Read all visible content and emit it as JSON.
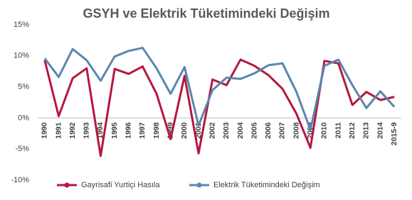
{
  "chart_data": {
    "type": "line",
    "title": "GSYH ve Elektrik Tüketimindeki  Değişim",
    "categories": [
      "1990",
      "1991",
      "1992",
      "1993",
      "1994",
      "1995",
      "1996",
      "1997",
      "1998",
      "1999",
      "2000",
      "2001",
      "2002",
      "2003",
      "2004",
      "2005",
      "2006",
      "2007",
      "2008",
      "2009",
      "2010",
      "2011",
      "2012",
      "2013",
      "2014",
      "2015-9"
    ],
    "series": [
      {
        "name": "Gayrisafi Yurtiçi Hasıla",
        "color": "#b5173e",
        "values": [
          9.3,
          0.3,
          6.4,
          8.0,
          -6.1,
          7.9,
          7.1,
          8.3,
          3.9,
          -3.4,
          6.8,
          -5.7,
          6.2,
          5.3,
          9.4,
          8.4,
          6.9,
          4.7,
          0.7,
          -4.8,
          9.2,
          8.8,
          2.1,
          4.2,
          2.9,
          3.4
        ]
      },
      {
        "name": "Elektrik Tüketimindeki Değişim",
        "color": "#5b86ad",
        "values": [
          9.6,
          6.6,
          11.1,
          9.3,
          6.0,
          9.9,
          10.8,
          11.3,
          8.0,
          3.9,
          8.2,
          -1.2,
          4.5,
          6.5,
          6.3,
          7.2,
          8.5,
          8.8,
          4.2,
          -1.9,
          8.4,
          9.4,
          5.3,
          1.6,
          4.3,
          1.8
        ]
      }
    ],
    "ylim": [
      -10,
      15
    ],
    "yticks": [
      {
        "value": -10,
        "label": "-10%"
      },
      {
        "value": -5,
        "label": "-5%"
      },
      {
        "value": 0,
        "label": "0%"
      },
      {
        "value": 5,
        "label": "5%"
      },
      {
        "value": 10,
        "label": "10%"
      },
      {
        "value": 15,
        "label": "15%"
      }
    ],
    "grid": false,
    "legend": "bottom"
  }
}
